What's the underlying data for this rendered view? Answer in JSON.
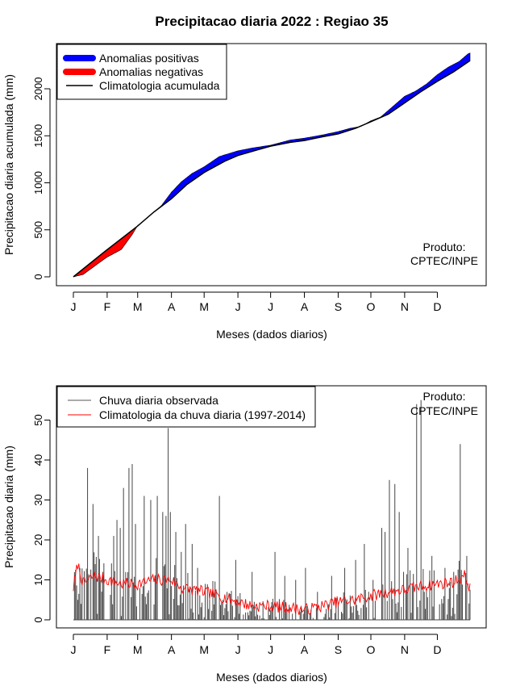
{
  "page": {
    "title": "Precipitacao diaria 2022 : Regiao 35",
    "brand": "CPTEC/INPE"
  },
  "chart_data": [
    {
      "type": "area",
      "id": "accumulated",
      "xlabel": "Meses (dados diarios)",
      "ylabel": "Precipitacao diaria acumulada (mm)",
      "xlim": [
        1,
        365
      ],
      "ylim": [
        0,
        2400
      ],
      "x_ticks": [
        {
          "day": 1,
          "label": "J"
        },
        {
          "day": 32,
          "label": "F"
        },
        {
          "day": 60,
          "label": "M"
        },
        {
          "day": 91,
          "label": "A"
        },
        {
          "day": 121,
          "label": "M"
        },
        {
          "day": 152,
          "label": "J"
        },
        {
          "day": 182,
          "label": "J"
        },
        {
          "day": 213,
          "label": "A"
        },
        {
          "day": 244,
          "label": "S"
        },
        {
          "day": 274,
          "label": "O"
        },
        {
          "day": 305,
          "label": "N"
        },
        {
          "day": 335,
          "label": "D"
        }
      ],
      "y_ticks": [
        0,
        500,
        1000,
        1500,
        2000
      ],
      "legend": {
        "position": "top-left",
        "items": [
          {
            "label": "Anomalias positivas",
            "color": "#0000ff",
            "style": "thick"
          },
          {
            "label": "Anomalias negativas",
            "color": "#ff0000",
            "style": "thick"
          },
          {
            "label": "Climatologia acumulada",
            "color": "#000000",
            "style": "line"
          }
        ]
      },
      "annotation": {
        "line1": "Produto:",
        "line2": "CPTEC/INPE",
        "position": "bottom-right"
      },
      "climatology_points": [
        [
          1,
          0
        ],
        [
          30,
          270
        ],
        [
          60,
          540
        ],
        [
          75,
          690
        ],
        [
          91,
          830
        ],
        [
          105,
          980
        ],
        [
          121,
          1110
        ],
        [
          140,
          1230
        ],
        [
          152,
          1290
        ],
        [
          170,
          1350
        ],
        [
          182,
          1390
        ],
        [
          200,
          1430
        ],
        [
          213,
          1450
        ],
        [
          230,
          1490
        ],
        [
          244,
          1520
        ],
        [
          260,
          1580
        ],
        [
          274,
          1650
        ],
        [
          290,
          1730
        ],
        [
          305,
          1850
        ],
        [
          320,
          1970
        ],
        [
          335,
          2080
        ],
        [
          350,
          2180
        ],
        [
          365,
          2300
        ]
      ],
      "observed_points": [
        [
          1,
          0
        ],
        [
          10,
          25
        ],
        [
          20,
          110
        ],
        [
          32,
          210
        ],
        [
          45,
          290
        ],
        [
          55,
          450
        ],
        [
          60,
          545
        ],
        [
          70,
          640
        ],
        [
          82,
          760
        ],
        [
          91,
          900
        ],
        [
          100,
          1010
        ],
        [
          110,
          1100
        ],
        [
          121,
          1170
        ],
        [
          135,
          1280
        ],
        [
          152,
          1340
        ],
        [
          165,
          1370
        ],
        [
          182,
          1400
        ],
        [
          200,
          1455
        ],
        [
          213,
          1475
        ],
        [
          230,
          1510
        ],
        [
          244,
          1545
        ],
        [
          255,
          1580
        ],
        [
          265,
          1600
        ],
        [
          274,
          1660
        ],
        [
          283,
          1700
        ],
        [
          290,
          1770
        ],
        [
          300,
          1870
        ],
        [
          305,
          1920
        ],
        [
          315,
          1975
        ],
        [
          325,
          2050
        ],
        [
          335,
          2150
        ],
        [
          345,
          2230
        ],
        [
          355,
          2290
        ],
        [
          363,
          2370
        ],
        [
          365,
          2380
        ]
      ]
    },
    {
      "type": "line",
      "id": "daily",
      "xlabel": "Meses (dados diarios)",
      "ylabel": "Precipitacao diaria (mm)",
      "xlim": [
        1,
        365
      ],
      "ylim": [
        0,
        55
      ],
      "y_ticks": [
        0,
        10,
        20,
        30,
        40,
        50
      ],
      "x_ticks": [
        {
          "day": 1,
          "label": "J"
        },
        {
          "day": 32,
          "label": "F"
        },
        {
          "day": 60,
          "label": "M"
        },
        {
          "day": 91,
          "label": "A"
        },
        {
          "day": 121,
          "label": "M"
        },
        {
          "day": 152,
          "label": "J"
        },
        {
          "day": 182,
          "label": "J"
        },
        {
          "day": 213,
          "label": "A"
        },
        {
          "day": 244,
          "label": "S"
        },
        {
          "day": 274,
          "label": "O"
        },
        {
          "day": 305,
          "label": "N"
        },
        {
          "day": 335,
          "label": "D"
        }
      ],
      "legend": {
        "position": "top-left",
        "items": [
          {
            "label": "Chuva diaria observada",
            "color": "#555555"
          },
          {
            "label": "Climatologia da chuva diaria (1997-2014)",
            "color": "#ff0000"
          }
        ]
      },
      "annotation": {
        "line1": "Produto:",
        "line2": "CPTEC/INPE",
        "position": "top-right"
      },
      "climatology_profile": [
        [
          1,
          8
        ],
        [
          5,
          14
        ],
        [
          10,
          9
        ],
        [
          20,
          11
        ],
        [
          32,
          10
        ],
        [
          45,
          9
        ],
        [
          60,
          9
        ],
        [
          75,
          10
        ],
        [
          91,
          10
        ],
        [
          100,
          8
        ],
        [
          121,
          7
        ],
        [
          135,
          6
        ],
        [
          152,
          4.5
        ],
        [
          165,
          3.5
        ],
        [
          182,
          3.5
        ],
        [
          200,
          3
        ],
        [
          213,
          2.5
        ],
        [
          230,
          3.5
        ],
        [
          244,
          4.5
        ],
        [
          260,
          5
        ],
        [
          274,
          6
        ],
        [
          290,
          7
        ],
        [
          305,
          7.5
        ],
        [
          320,
          8.5
        ],
        [
          335,
          9
        ],
        [
          350,
          9.5
        ],
        [
          360,
          11
        ],
        [
          365,
          8
        ]
      ],
      "observed_spikes": [
        [
          5,
          5
        ],
        [
          8,
          4
        ],
        [
          14,
          38
        ],
        [
          19,
          29
        ],
        [
          24,
          21
        ],
        [
          28,
          12
        ],
        [
          38,
          21
        ],
        [
          41,
          25
        ],
        [
          44,
          23
        ],
        [
          47,
          33
        ],
        [
          52,
          38
        ],
        [
          55,
          39
        ],
        [
          58,
          24
        ],
        [
          66,
          31
        ],
        [
          72,
          30
        ],
        [
          78,
          31
        ],
        [
          83,
          27
        ],
        [
          86,
          26
        ],
        [
          88,
          48
        ],
        [
          90,
          27
        ],
        [
          95,
          22
        ],
        [
          100,
          17
        ],
        [
          104,
          24
        ],
        [
          110,
          19
        ],
        [
          115,
          13
        ],
        [
          122,
          9
        ],
        [
          135,
          31
        ],
        [
          150,
          15
        ],
        [
          165,
          12
        ],
        [
          186,
          17
        ],
        [
          195,
          11
        ],
        [
          205,
          10
        ],
        [
          214,
          13
        ],
        [
          225,
          7
        ],
        [
          238,
          11
        ],
        [
          250,
          13
        ],
        [
          260,
          15
        ],
        [
          268,
          19
        ],
        [
          276,
          10
        ],
        [
          284,
          23
        ],
        [
          287,
          22
        ],
        [
          291,
          35
        ],
        [
          296,
          34
        ],
        [
          300,
          27
        ],
        [
          304,
          12
        ],
        [
          308,
          18
        ],
        [
          316,
          54
        ],
        [
          320,
          55
        ],
        [
          323,
          7
        ],
        [
          330,
          16
        ],
        [
          342,
          13
        ],
        [
          350,
          12
        ],
        [
          356,
          44
        ],
        [
          362,
          16
        ]
      ]
    }
  ]
}
